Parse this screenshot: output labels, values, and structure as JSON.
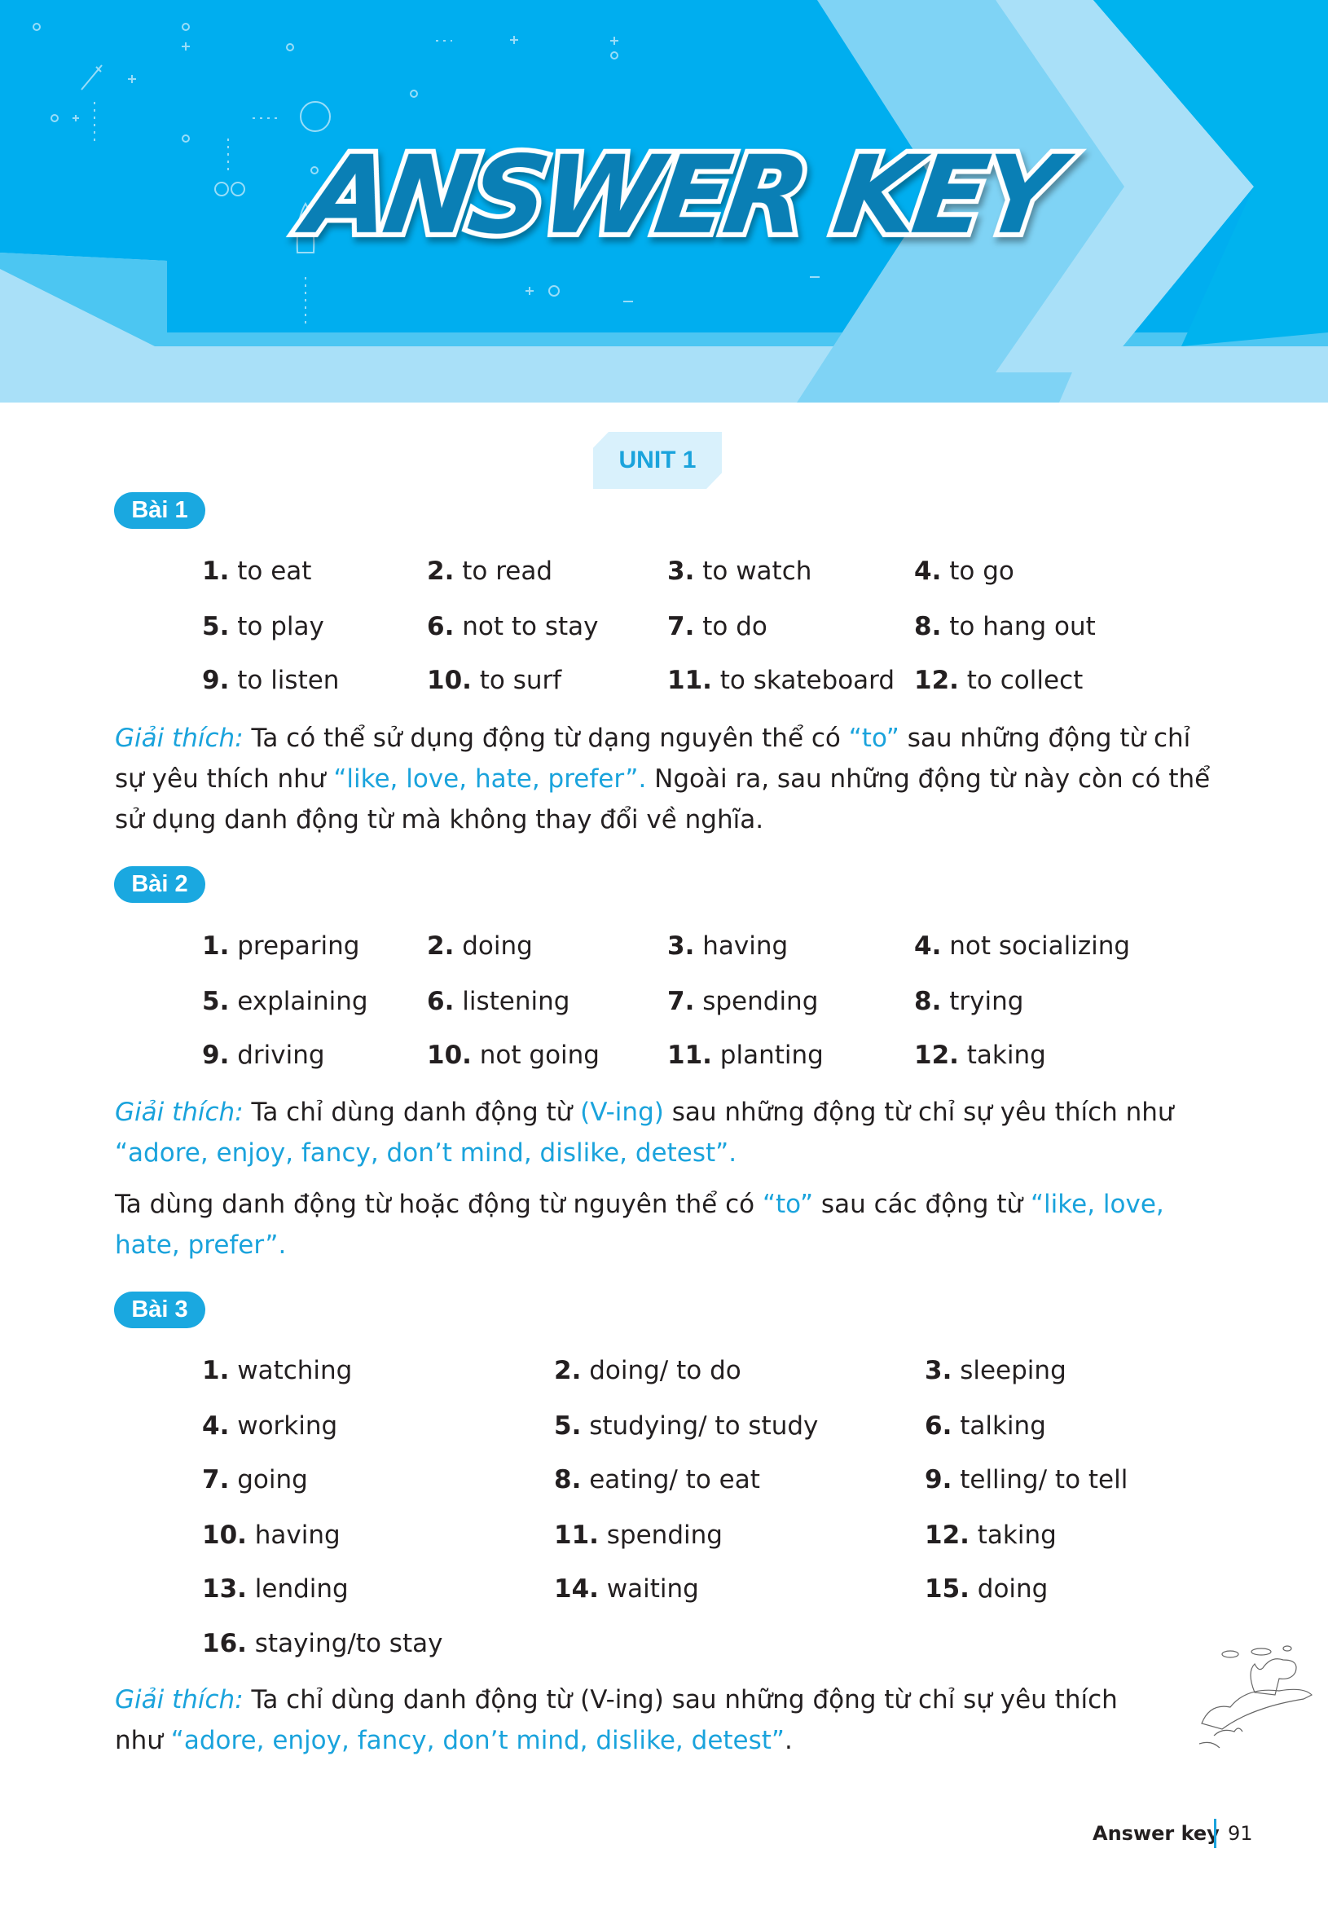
{
  "header": {
    "title": "ANSWER KEY",
    "colors": {
      "main_blue": "#00AEEF",
      "light_blue": "#7FD3F5",
      "pale_blue": "#A9E0F8",
      "title_blue": "#0A7FB5"
    }
  },
  "unit_label": "UNIT 1",
  "accent_color": "#1AA3DC",
  "bai1": {
    "label": "Bài 1",
    "answers": [
      {
        "n": "1.",
        "t": "to eat"
      },
      {
        "n": "2.",
        "t": "to read"
      },
      {
        "n": "3.",
        "t": "to watch"
      },
      {
        "n": "4.",
        "t": "to go"
      },
      {
        "n": "5.",
        "t": "to play"
      },
      {
        "n": "6.",
        "t": "not to stay"
      },
      {
        "n": "7.",
        "t": "to do"
      },
      {
        "n": "8.",
        "t": "to hang out"
      },
      {
        "n": "9.",
        "t": "to listen"
      },
      {
        "n": "10.",
        "t": "to surf"
      },
      {
        "n": "11.",
        "t": "to skateboard"
      },
      {
        "n": "12.",
        "t": "to collect"
      }
    ],
    "explanation": [
      "Giải thích:",
      " Ta có thể sử dụng động từ dạng nguyên thể có ",
      "“to”",
      " sau những động từ chỉ sự yêu thích như ",
      "“like, love, hate, prefer”.",
      " Ngoài ra, sau những động từ này còn có thể sử dụng danh động từ mà không thay đổi về nghĩa."
    ]
  },
  "bai2": {
    "label": "Bài 2",
    "answers": [
      {
        "n": "1.",
        "t": "preparing"
      },
      {
        "n": "2.",
        "t": "doing"
      },
      {
        "n": "3.",
        "t": "having"
      },
      {
        "n": "4.",
        "t": "not socializing"
      },
      {
        "n": "5.",
        "t": "explaining"
      },
      {
        "n": "6.",
        "t": "listening"
      },
      {
        "n": "7.",
        "t": "spending"
      },
      {
        "n": "8.",
        "t": "trying"
      },
      {
        "n": "9.",
        "t": "driving"
      },
      {
        "n": "10.",
        "t": "not going"
      },
      {
        "n": "11.",
        "t": "planting"
      },
      {
        "n": "12.",
        "t": "taking"
      }
    ],
    "explanation": [
      "Giải thích:",
      " Ta chỉ dùng danh động từ ",
      "(V-ing)",
      " sau những động từ chỉ sự yêu thích như ",
      "“adore, enjoy, fancy, don’t mind, dislike, detest”."
    ],
    "note": [
      "Ta dùng danh động từ hoặc động từ nguyên thể có ",
      "“to”",
      " sau các động từ ",
      "“like, love, hate, prefer”."
    ]
  },
  "bai3": {
    "label": "Bài 3",
    "answers": [
      {
        "n": "1.",
        "t": "watching"
      },
      {
        "n": "2.",
        "t": "doing/ to do"
      },
      {
        "n": "3.",
        "t": "sleeping"
      },
      {
        "n": "4.",
        "t": "working"
      },
      {
        "n": "5.",
        "t": "studying/ to study"
      },
      {
        "n": "6.",
        "t": "talking"
      },
      {
        "n": "7.",
        "t": "going"
      },
      {
        "n": "8.",
        "t": "eating/ to eat"
      },
      {
        "n": "9.",
        "t": "telling/ to tell"
      },
      {
        "n": "10.",
        "t": "having"
      },
      {
        "n": "11.",
        "t": "spending"
      },
      {
        "n": "12.",
        "t": "taking"
      },
      {
        "n": "13.",
        "t": "lending"
      },
      {
        "n": "14.",
        "t": "waiting"
      },
      {
        "n": "15.",
        "t": "doing"
      },
      {
        "n": "16.",
        "t": "staying/to stay"
      }
    ],
    "explanation": [
      "Giải thích:",
      " Ta chỉ dùng danh động từ (V-ing) sau những động từ chỉ sự yêu thích như ",
      "“adore, enjoy, fancy, don’t mind, dislike, detest”",
      "."
    ]
  },
  "illustration": "dinosaur-on-rocks-sketch",
  "footer": {
    "section": "Answer key",
    "page": "91"
  }
}
